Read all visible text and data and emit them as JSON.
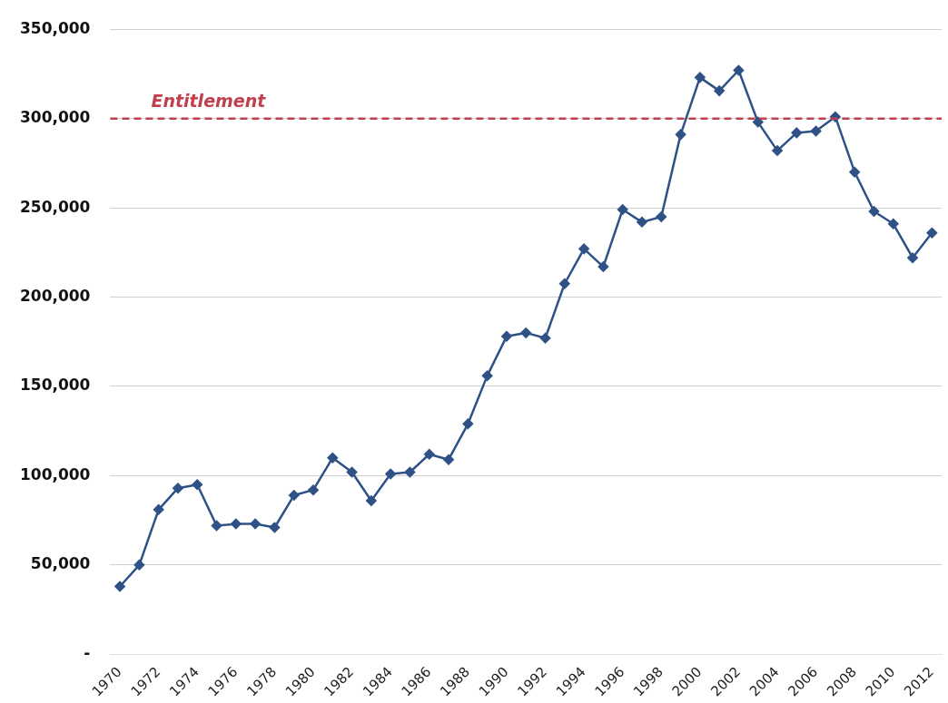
{
  "chart_data": {
    "type": "line",
    "categories": [
      "1970",
      null,
      "1972",
      null,
      "1974",
      null,
      "1976",
      null,
      "1978",
      null,
      "1980",
      null,
      "1982",
      null,
      "1984",
      null,
      "1986",
      null,
      "1988",
      null,
      "1990",
      null,
      "1992",
      null,
      "1994",
      null,
      "1996",
      null,
      "1998",
      null,
      "2000",
      null,
      "2002",
      null,
      "2004",
      null,
      "2006",
      null,
      "2008",
      null,
      "2010",
      null,
      "2012"
    ],
    "series": [
      {
        "color": "#2f5286",
        "values": [
          38000,
          50000,
          81000,
          93000,
          95000,
          72000,
          73000,
          73000,
          71000,
          89000,
          92000,
          110000,
          102000,
          86000,
          101000,
          102000,
          112000,
          109000,
          129000,
          156000,
          178000,
          180000,
          177000,
          207500,
          227000,
          217000,
          249000,
          242000,
          245000,
          291000,
          323000,
          315500,
          327000,
          298000,
          282000,
          292000,
          293000,
          301000,
          270000,
          248000,
          241000,
          222000,
          236000
        ]
      }
    ],
    "ylim": [
      0,
      350000
    ],
    "yticks": [
      {
        "value": 0,
        "label": "-"
      },
      {
        "value": 50000,
        "label": "50,000"
      },
      {
        "value": 100000,
        "label": "100,000"
      },
      {
        "value": 150000,
        "label": "150,000"
      },
      {
        "value": 200000,
        "label": "200,000"
      },
      {
        "value": 250000,
        "label": "250,000"
      },
      {
        "value": 300000,
        "label": "300,000"
      },
      {
        "value": 350000,
        "label": "350,000"
      }
    ],
    "ref_lines": [
      {
        "axis": "y",
        "value": 300000,
        "label": "Entitlement",
        "color": "#c0404e",
        "line_style": "dashed"
      }
    ],
    "grid": "y",
    "marker": "diamond",
    "line_style": "solid",
    "legend": false
  }
}
